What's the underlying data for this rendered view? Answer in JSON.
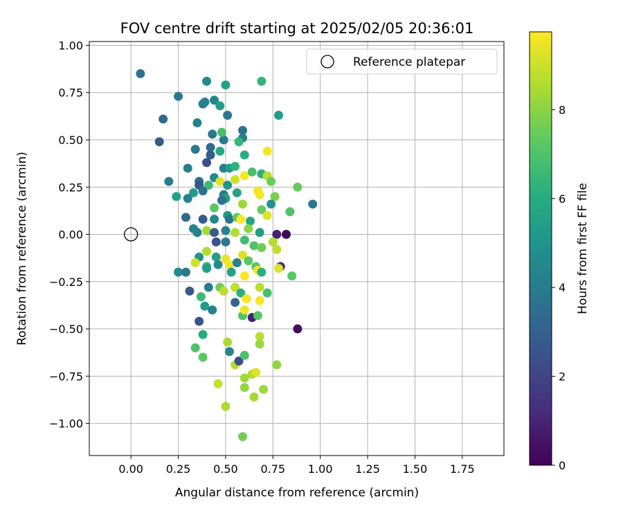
{
  "chart_data": {
    "type": "scatter",
    "title": "FOV centre drift starting at 2025/02/05 20:36:01",
    "xlabel": "Angular distance from reference (arcmin)",
    "ylabel": "Rotation from reference (arcmin)",
    "xlim": [
      -0.22,
      1.97
    ],
    "ylim": [
      -1.17,
      1.02
    ],
    "xticks": [
      "0.00",
      "0.25",
      "0.50",
      "0.75",
      "1.00",
      "1.25",
      "1.50",
      "1.75"
    ],
    "yticks": [
      "1.00",
      "0.75",
      "0.50",
      "0.25",
      "0.00",
      "−0.25",
      "−0.50",
      "−0.75",
      "−1.00"
    ],
    "grid": true,
    "legend": {
      "position": "top-right",
      "entries": [
        "Reference platepar"
      ]
    },
    "reference_point": {
      "x": 0.0,
      "y": 0.0
    },
    "colorbar": {
      "label": "Hours from first FF file",
      "min": 0,
      "max": 9.75,
      "ticks": [
        "0",
        "2",
        "4",
        "6",
        "8"
      ],
      "colormap": "viridis"
    },
    "series": [
      {
        "points": [
          [
            0.05,
            0.85,
            3.6
          ],
          [
            0.25,
            0.73,
            4.0
          ],
          [
            0.4,
            0.81,
            4.6
          ],
          [
            0.5,
            0.79,
            5.6
          ],
          [
            0.69,
            0.81,
            6.4
          ],
          [
            0.17,
            0.61,
            3.4
          ],
          [
            0.38,
            0.69,
            4.0
          ],
          [
            0.39,
            0.7,
            4.3
          ],
          [
            0.44,
            0.71,
            4.5
          ],
          [
            0.47,
            0.68,
            5.3
          ],
          [
            0.78,
            0.63,
            5.3
          ],
          [
            0.15,
            0.49,
            2.6
          ],
          [
            0.35,
            0.59,
            4.3
          ],
          [
            0.51,
            0.63,
            3.8
          ],
          [
            0.43,
            0.53,
            3.8
          ],
          [
            0.49,
            0.5,
            4.0
          ],
          [
            0.59,
            0.55,
            3.7
          ],
          [
            0.59,
            0.51,
            4.1
          ],
          [
            0.48,
            0.54,
            6.8
          ],
          [
            0.57,
            0.49,
            6.4
          ],
          [
            0.34,
            0.45,
            3.9
          ],
          [
            0.42,
            0.46,
            3.4
          ],
          [
            0.47,
            0.44,
            5.9
          ],
          [
            0.42,
            0.42,
            2.8
          ],
          [
            0.6,
            0.42,
            6.1
          ],
          [
            0.72,
            0.44,
            9.6
          ],
          [
            0.3,
            0.35,
            4.1
          ],
          [
            0.4,
            0.38,
            2.3
          ],
          [
            0.49,
            0.35,
            4.0
          ],
          [
            0.52,
            0.35,
            5.2
          ],
          [
            0.55,
            0.36,
            6.3
          ],
          [
            0.44,
            0.3,
            4.6
          ],
          [
            0.6,
            0.31,
            9.7
          ],
          [
            0.64,
            0.33,
            6.9
          ],
          [
            0.69,
            0.32,
            6.2
          ],
          [
            0.72,
            0.31,
            8.7
          ],
          [
            0.2,
            0.28,
            4.0
          ],
          [
            0.36,
            0.28,
            3.4
          ],
          [
            0.36,
            0.26,
            2.6
          ],
          [
            0.41,
            0.26,
            6.6
          ],
          [
            0.47,
            0.28,
            9.3
          ],
          [
            0.51,
            0.26,
            5.1
          ],
          [
            0.55,
            0.29,
            9.0
          ],
          [
            0.67,
            0.23,
            9.6
          ],
          [
            0.74,
            0.28,
            7.5
          ],
          [
            0.88,
            0.25,
            7.4
          ],
          [
            0.24,
            0.2,
            5.6
          ],
          [
            0.33,
            0.22,
            5.3
          ],
          [
            0.3,
            0.19,
            4.3
          ],
          [
            0.38,
            0.23,
            3.6
          ],
          [
            0.49,
            0.21,
            4.1
          ],
          [
            0.5,
            0.19,
            5.4
          ],
          [
            0.56,
            0.22,
            5.6
          ],
          [
            0.68,
            0.21,
            9.6
          ],
          [
            0.76,
            0.2,
            7.7
          ],
          [
            0.44,
            0.14,
            7.2
          ],
          [
            0.48,
            0.18,
            3.6
          ],
          [
            0.51,
            0.1,
            5.3
          ],
          [
            0.59,
            0.16,
            8.3
          ],
          [
            0.69,
            0.13,
            7.4
          ],
          [
            0.74,
            0.16,
            5.0
          ],
          [
            0.84,
            0.12,
            7.0
          ],
          [
            0.96,
            0.16,
            3.9
          ],
          [
            0.29,
            0.09,
            3.4
          ],
          [
            0.38,
            0.08,
            2.7
          ],
          [
            0.44,
            0.08,
            4.6
          ],
          [
            0.52,
            0.08,
            3.7
          ],
          [
            0.56,
            0.09,
            7.3
          ],
          [
            0.58,
            0.08,
            9.7
          ],
          [
            0.63,
            0.07,
            5.8
          ],
          [
            0.72,
            0.1,
            9.3
          ],
          [
            0.33,
            0.03,
            4.3
          ],
          [
            0.35,
            0.01,
            4.3
          ],
          [
            0.4,
            0.02,
            8.4
          ],
          [
            0.44,
            0.01,
            2.8
          ],
          [
            0.5,
            0.02,
            4.3
          ],
          [
            0.55,
            0.01,
            8.6
          ],
          [
            0.62,
            0.03,
            8.0
          ],
          [
            0.68,
            0.01,
            5.4
          ],
          [
            0.77,
            0.0,
            0.9
          ],
          [
            0.82,
            0.0,
            0.2
          ],
          [
            0.45,
            -0.04,
            2.4
          ],
          [
            0.5,
            -0.04,
            4.0
          ],
          [
            0.6,
            -0.03,
            6.7
          ],
          [
            0.65,
            -0.06,
            7.0
          ],
          [
            0.69,
            -0.07,
            7.6
          ],
          [
            0.75,
            -0.04,
            8.6
          ],
          [
            0.36,
            -0.12,
            5.0
          ],
          [
            0.4,
            -0.09,
            8.6
          ],
          [
            0.45,
            -0.12,
            5.5
          ],
          [
            0.5,
            -0.13,
            9.4
          ],
          [
            0.52,
            -0.16,
            9.6
          ],
          [
            0.59,
            -0.11,
            9.2
          ],
          [
            0.62,
            -0.14,
            7.2
          ],
          [
            0.66,
            -0.17,
            7.2
          ],
          [
            0.77,
            -0.08,
            8.8
          ],
          [
            0.34,
            -0.15,
            9.0
          ],
          [
            0.4,
            -0.17,
            6.3
          ],
          [
            0.46,
            -0.16,
            4.6
          ],
          [
            0.56,
            -0.15,
            4.2
          ],
          [
            0.67,
            -0.19,
            9.6
          ],
          [
            0.79,
            -0.17,
            1.2
          ],
          [
            0.25,
            -0.2,
            4.7
          ],
          [
            0.29,
            -0.2,
            3.9
          ],
          [
            0.4,
            -0.18,
            5.4
          ],
          [
            0.47,
            -0.28,
            7.6
          ],
          [
            0.53,
            -0.2,
            5.5
          ],
          [
            0.6,
            -0.22,
            9.7
          ],
          [
            0.69,
            -0.2,
            6.2
          ],
          [
            0.78,
            -0.18,
            9.3
          ],
          [
            0.85,
            -0.22,
            7.2
          ],
          [
            0.31,
            -0.3,
            2.8
          ],
          [
            0.41,
            -0.28,
            4.1
          ],
          [
            0.49,
            -0.3,
            8.7
          ],
          [
            0.55,
            -0.28,
            8.8
          ],
          [
            0.58,
            -0.31,
            6.2
          ],
          [
            0.61,
            -0.34,
            9.6
          ],
          [
            0.68,
            -0.28,
            8.7
          ],
          [
            0.72,
            -0.31,
            6.8
          ],
          [
            0.37,
            -0.33,
            6.6
          ],
          [
            0.39,
            -0.38,
            5.3
          ],
          [
            0.43,
            -0.4,
            4.3
          ],
          [
            0.55,
            -0.36,
            3.1
          ],
          [
            0.59,
            -0.43,
            7.0
          ],
          [
            0.64,
            -0.44,
            0.9
          ],
          [
            0.67,
            -0.43,
            7.1
          ],
          [
            0.36,
            -0.46,
            2.6
          ],
          [
            0.38,
            -0.53,
            6.0
          ],
          [
            0.6,
            -0.4,
            9.5
          ],
          [
            0.68,
            -0.35,
            9.7
          ],
          [
            0.88,
            -0.5,
            0.3
          ],
          [
            0.34,
            -0.6,
            7.0
          ],
          [
            0.38,
            -0.65,
            7.2
          ],
          [
            0.51,
            -0.57,
            8.5
          ],
          [
            0.52,
            -0.62,
            4.4
          ],
          [
            0.55,
            -0.69,
            8.6
          ],
          [
            0.57,
            -0.67,
            2.3
          ],
          [
            0.6,
            -0.64,
            6.9
          ],
          [
            0.68,
            -0.54,
            8.7
          ],
          [
            0.68,
            -0.58,
            8.2
          ],
          [
            0.46,
            -0.79,
            8.9
          ],
          [
            0.6,
            -0.76,
            8.3
          ],
          [
            0.64,
            -0.74,
            8.5
          ],
          [
            0.66,
            -0.73,
            9.3
          ],
          [
            0.77,
            -0.69,
            8.1
          ],
          [
            0.6,
            -0.81,
            8.1
          ],
          [
            0.65,
            -0.86,
            8.4
          ],
          [
            0.7,
            -0.82,
            8.3
          ],
          [
            0.5,
            -0.91,
            8.5
          ],
          [
            0.59,
            -1.07,
            7.6
          ]
        ]
      }
    ]
  }
}
